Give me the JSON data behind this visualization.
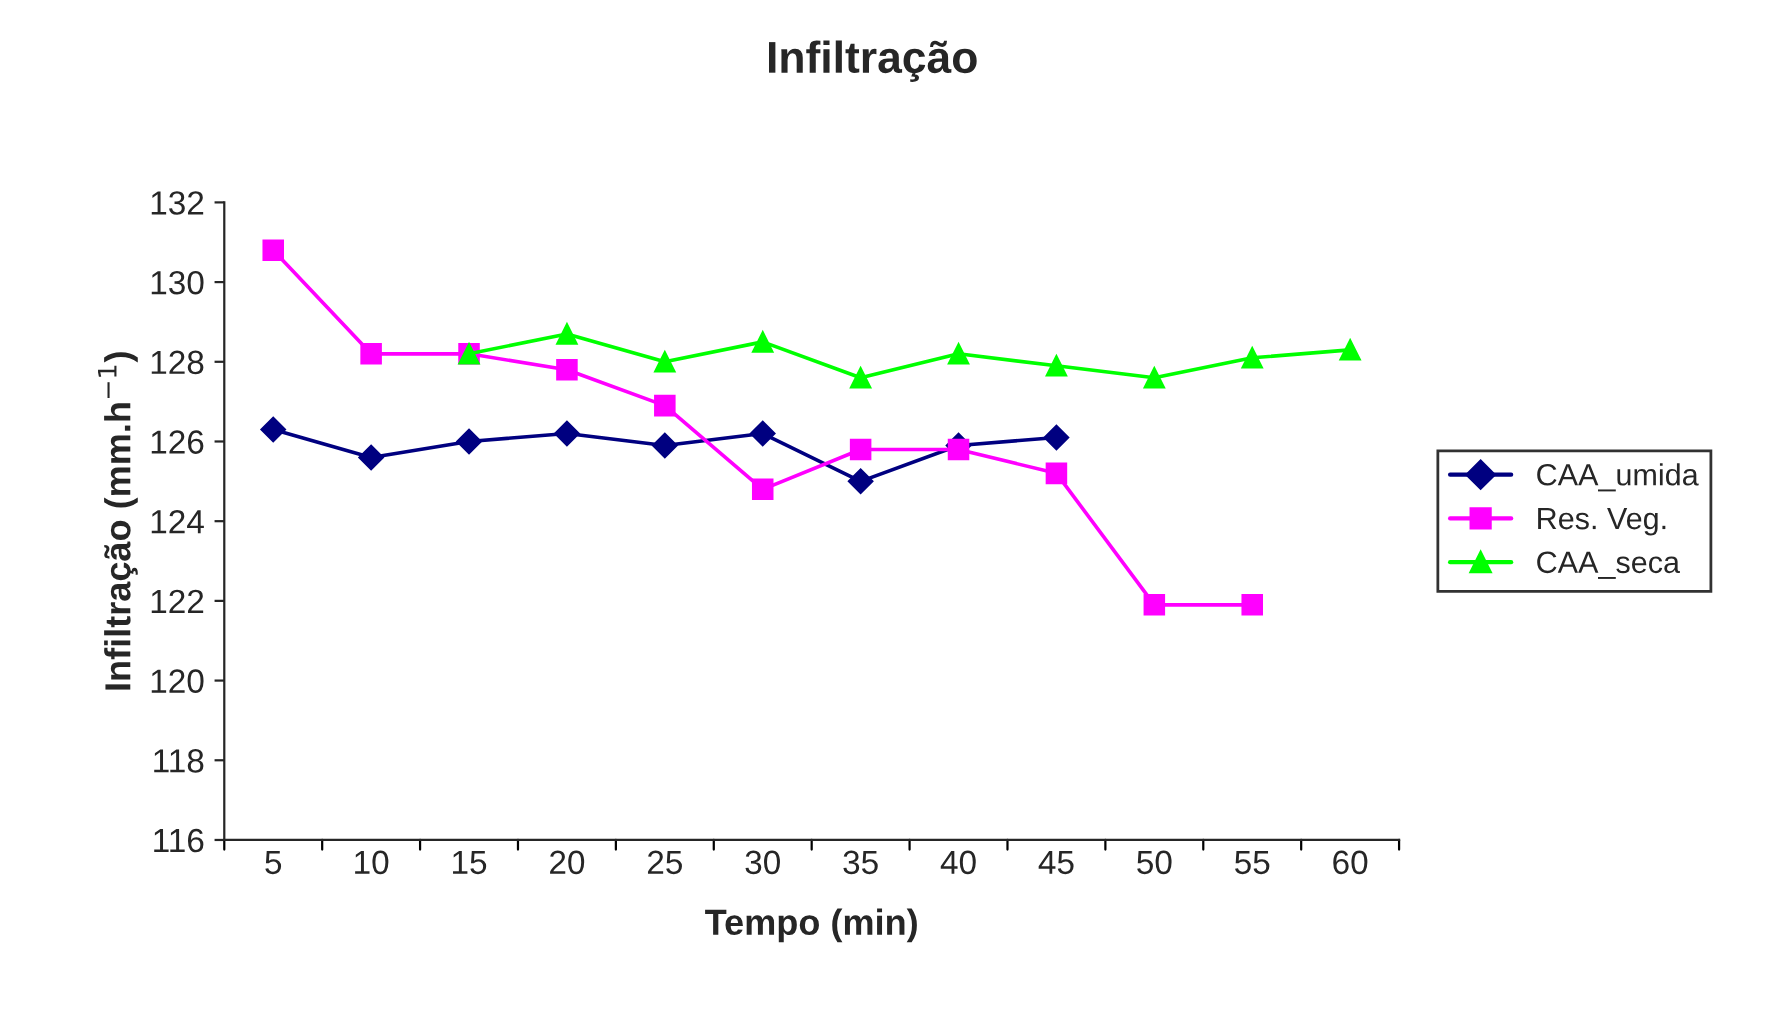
{
  "chart_data": {
    "type": "line",
    "title": "Infiltração",
    "xlabel": "Tempo (min)",
    "ylabel": "Infiltração (mm.h$^{−1}$)",
    "categories": [
      "5",
      "10",
      "15",
      "20",
      "25",
      "30",
      "35",
      "40",
      "45",
      "50",
      "55",
      "60"
    ],
    "series": [
      {
        "name": "CAA_umida",
        "color": "#000080",
        "marker": "diamond",
        "values": [
          126.3,
          125.6,
          126.0,
          126.2,
          125.9,
          126.2,
          125.0,
          125.9,
          126.1,
          null,
          null,
          null
        ]
      },
      {
        "name": "Res. Veg.",
        "color": "#ff00ff",
        "marker": "square",
        "values": [
          130.8,
          128.2,
          128.2,
          127.8,
          126.9,
          124.8,
          125.8,
          125.8,
          125.2,
          121.9,
          121.9,
          null
        ]
      },
      {
        "name": "CAA_seca",
        "color": "#00ff00",
        "marker": "triangle",
        "values": [
          null,
          null,
          128.2,
          128.7,
          128.0,
          128.5,
          127.6,
          128.2,
          127.9,
          127.6,
          128.1,
          128.3
        ]
      }
    ],
    "ylim": [
      116,
      132
    ],
    "yticks": [
      116,
      118,
      120,
      122,
      124,
      126,
      128,
      130,
      132
    ],
    "grid": false,
    "legend": "right",
    "line_style": "solid"
  }
}
